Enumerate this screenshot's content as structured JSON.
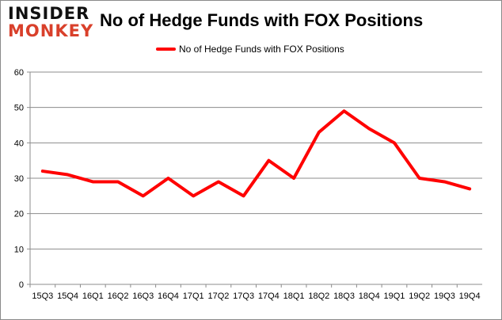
{
  "logo": {
    "line1": "INSIDER",
    "line2": "MONKEY"
  },
  "chart_data": {
    "type": "line",
    "title": "No of Hedge Funds with FOX Positions",
    "xlabel": "",
    "ylabel": "",
    "categories": [
      "15Q3",
      "15Q4",
      "16Q1",
      "16Q2",
      "16Q3",
      "16Q4",
      "17Q1",
      "17Q2",
      "17Q3",
      "17Q4",
      "18Q1",
      "18Q2",
      "18Q3",
      "18Q4",
      "19Q1",
      "19Q2",
      "19Q3",
      "19Q4"
    ],
    "series": [
      {
        "name": "No of Hedge Funds with FOX Positions",
        "color": "#ff0000",
        "values": [
          32,
          31,
          29,
          29,
          25,
          30,
          25,
          29,
          25,
          35,
          30,
          43,
          49,
          44,
          40,
          30,
          29,
          27
        ]
      }
    ],
    "ylim": [
      0,
      60
    ],
    "yticks": [
      0,
      10,
      20,
      30,
      40,
      50,
      60
    ],
    "grid": true,
    "legend_position": "top"
  }
}
